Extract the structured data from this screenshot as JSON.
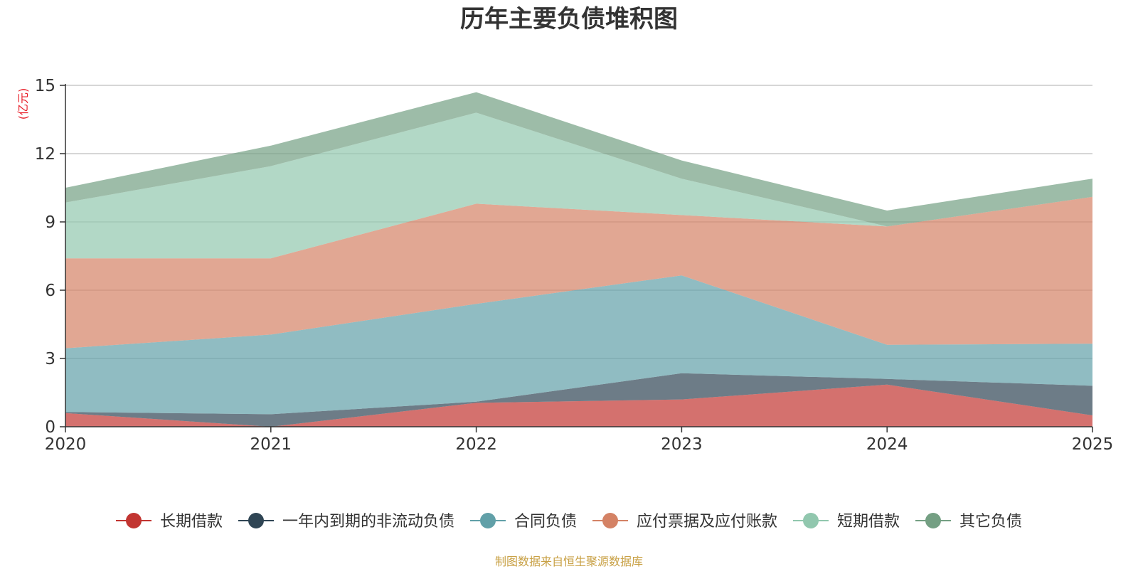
{
  "chart_data": {
    "type": "area",
    "stacked": true,
    "title": "历年主要负债堆积图",
    "ylabel": "(亿元)",
    "xlabel": "",
    "categories": [
      "2020",
      "2021",
      "2022",
      "2023",
      "2024",
      "2025"
    ],
    "ylim": [
      0,
      15
    ],
    "yticks": [
      0,
      3,
      6,
      9,
      12,
      15
    ],
    "grid": true,
    "legend_position": "bottom",
    "series": [
      {
        "name": "长期借款",
        "color": "#c23531",
        "values": [
          0.6,
          0.0,
          1.05,
          1.2,
          1.85,
          0.5
        ]
      },
      {
        "name": "一年内到期的非流动负债",
        "color": "#2f4554",
        "values": [
          0.05,
          0.55,
          0.05,
          1.15,
          0.25,
          1.3
        ]
      },
      {
        "name": "合同负债",
        "color": "#61a0a8",
        "values": [
          2.8,
          3.5,
          4.3,
          4.3,
          1.5,
          1.85
        ]
      },
      {
        "name": "应付票据及应付账款",
        "color": "#d48265",
        "values": [
          3.95,
          3.35,
          4.4,
          2.65,
          5.2,
          6.45
        ]
      },
      {
        "name": "短期借款",
        "color": "#91c7ae",
        "values": [
          2.45,
          4.05,
          4.0,
          1.6,
          0.0,
          0.0
        ]
      },
      {
        "name": "其它负债",
        "color": "#749f83",
        "values": [
          0.65,
          0.9,
          0.9,
          0.8,
          0.7,
          0.8
        ]
      }
    ],
    "source": "制图数据来自恒生聚源数据库"
  }
}
